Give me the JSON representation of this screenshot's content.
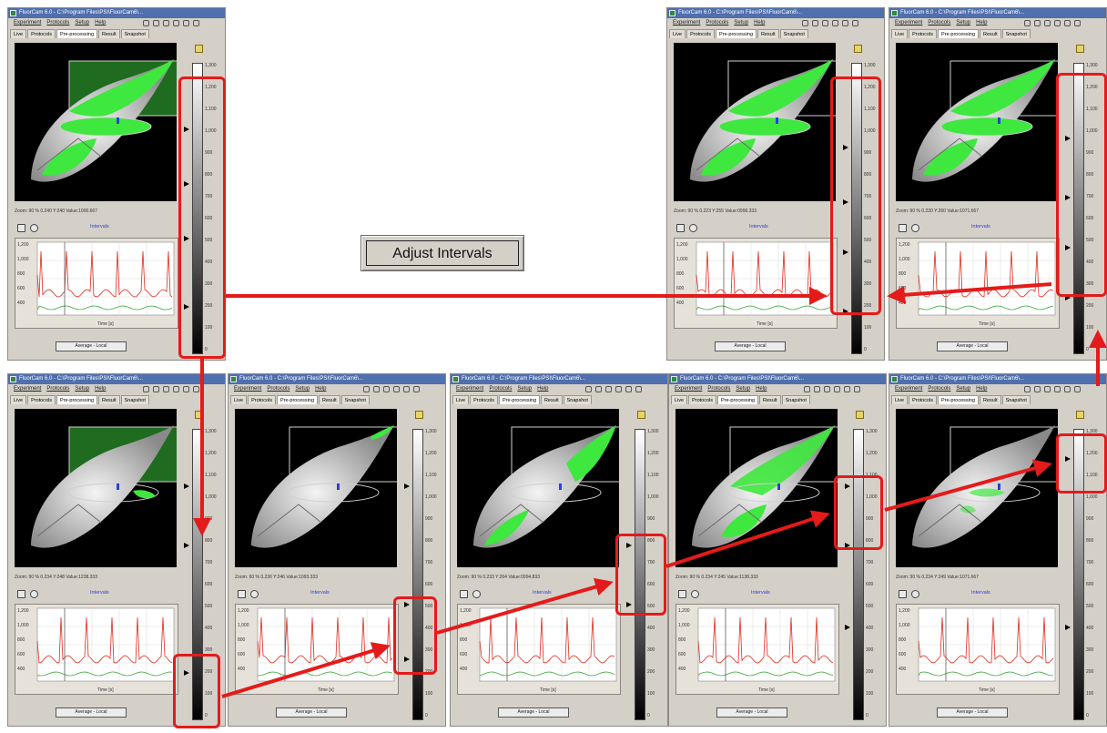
{
  "caption_button": {
    "label": "Adjust Intervals"
  },
  "window": {
    "title": "FluorCam 6.0 - C:\\Program Files\\PSI\\FluorCam6\\...",
    "menus": [
      "Experiment",
      "Protocols",
      "Setup",
      "Help"
    ],
    "tabs": [
      "Live",
      "Protocols",
      "Pre-processing",
      "Result",
      "Snapshot"
    ],
    "active_tab": "Pre-processing",
    "plot_title": "Intervals",
    "xlabel": "Time [s]",
    "average_button": "Average - Local",
    "scale_ticks": [
      "1,300",
      "1,200",
      "1,100",
      "1,000",
      "900",
      "800",
      "700",
      "600",
      "500",
      "400",
      "300",
      "200",
      "100",
      "0"
    ],
    "icons": [
      "save-icon",
      "settings-icon",
      "leaf-icon",
      "info-icon",
      "circle-icon",
      "grid-icon",
      "chart-icon"
    ]
  },
  "panels": [
    {
      "id": "p1",
      "zoom_text": "Zoom: 90 %     0.240 Y:240 Value:1000.667"
    },
    {
      "id": "p2",
      "zoom_text": "Zoom: 90 %     0.223 Y:255 Value:0996.333"
    },
    {
      "id": "p3",
      "zoom_text": "Zoom: 90 %     0.230 Y:260 Value:1071.667"
    },
    {
      "id": "p4",
      "zoom_text": "Zoom: 90 %     0.234 Y:248 Value:1238.333"
    },
    {
      "id": "p5",
      "zoom_text": "Zoom: 90 %     0.236 Y:246 Value:1093.333"
    },
    {
      "id": "p6",
      "zoom_text": "Zoom: 90 %     0.233 Y:264 Value:0994.833"
    },
    {
      "id": "p7",
      "zoom_text": "Zoom: 90 %     0.234 Y:245 Value:1138.333"
    },
    {
      "id": "p8",
      "zoom_text": "Zoom: 90 %     0.234 Y:249 Value:1071.667"
    }
  ],
  "colors": {
    "arrow": "#e31b1b",
    "leaf_green": "#3ee83e",
    "trace_red": "#e02b1c",
    "trace_green": "#3aa53a"
  }
}
